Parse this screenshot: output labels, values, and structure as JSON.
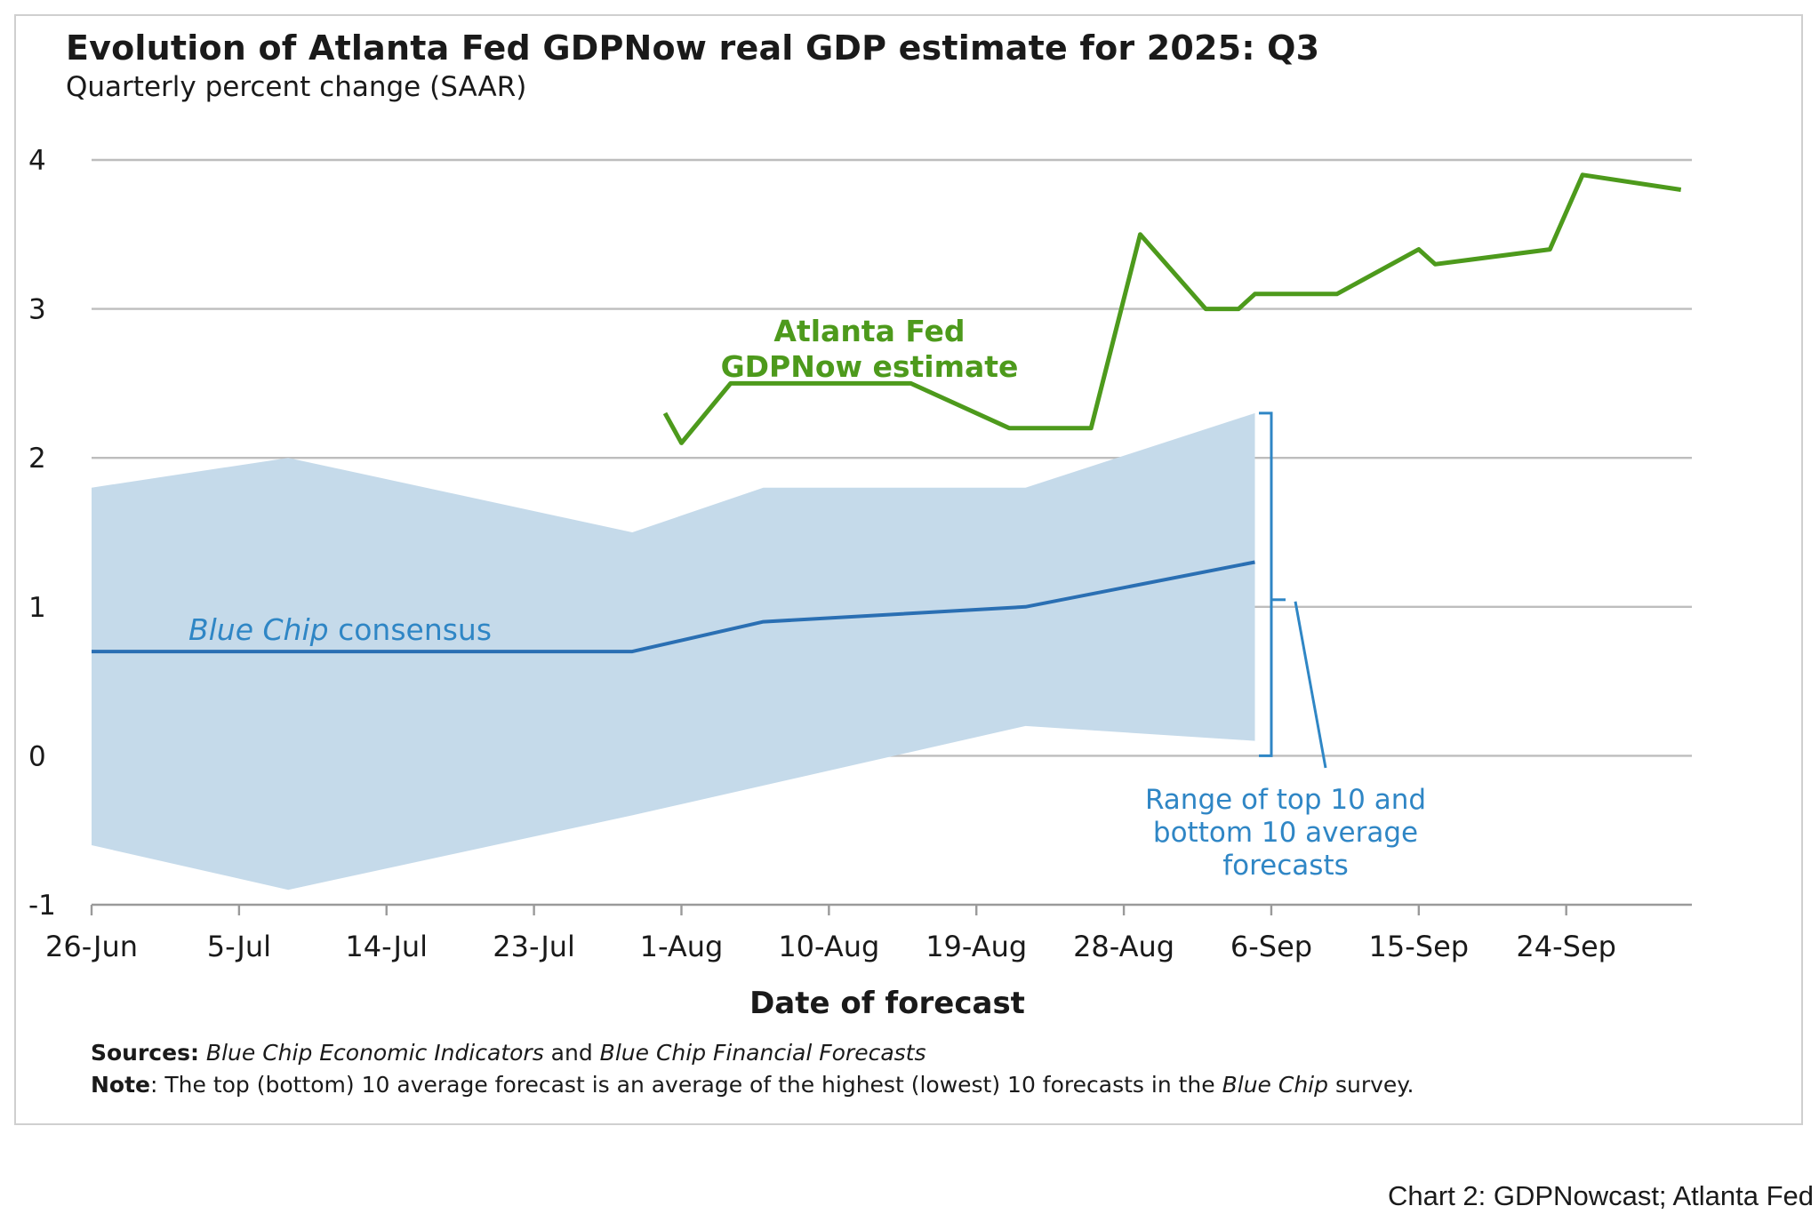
{
  "title": "Evolution of Atlanta Fed GDPNow real GDP estimate for 2025: Q3",
  "subtitle": "Quarterly percent change (SAAR)",
  "caption": "Chart 2: GDPNowcast; Atlanta Fed",
  "sources": {
    "label": "Sources:",
    "part1": "Blue Chip Economic Indicators",
    "and": " and ",
    "part2": "Blue Chip Financial Forecasts"
  },
  "note": {
    "label": "Note",
    "text_before": ": The top (bottom) 10 average forecast is an average of the highest (lowest) 10 forecasts in the ",
    "italic": "Blue Chip",
    "text_after": " survey."
  },
  "chart_data": {
    "type": "line",
    "xlabel": "Date of forecast",
    "ylabel": "",
    "ylim": [
      -1,
      4
    ],
    "yticks": [
      "-1",
      "0",
      "1",
      "2",
      "3",
      "4"
    ],
    "x_tick_labels": [
      "26-Jun",
      "5-Jul",
      "14-Jul",
      "23-Jul",
      "1-Aug",
      "10-Aug",
      "19-Aug",
      "28-Aug",
      "6-Sep",
      "15-Sep",
      "24-Sep"
    ],
    "grid": true,
    "colors": {
      "gdpnow": "#4d9a1c",
      "consensus": "#2a6fb3",
      "range": "#c5daea",
      "annotation": "#2f86c5",
      "grid": "#bdbdbd"
    },
    "series": [
      {
        "name": "Atlanta Fed GDPNow estimate",
        "points": [
          [
            "2025-07-31",
            2.3
          ],
          [
            "2025-08-01",
            2.1
          ],
          [
            "2025-08-04",
            2.5
          ],
          [
            "2025-08-15",
            2.5
          ],
          [
            "2025-08-21",
            2.2
          ],
          [
            "2025-08-26",
            2.2
          ],
          [
            "2025-08-29",
            3.5
          ],
          [
            "2025-09-02",
            3.0
          ],
          [
            "2025-09-04",
            3.0
          ],
          [
            "2025-09-05",
            3.1
          ],
          [
            "2025-09-10",
            3.1
          ],
          [
            "2025-09-15",
            3.4
          ],
          [
            "2025-09-16",
            3.3
          ],
          [
            "2025-09-23",
            3.4
          ],
          [
            "2025-09-25",
            3.9
          ],
          [
            "2025-10-01",
            3.8
          ]
        ]
      },
      {
        "name": "Blue Chip consensus",
        "points": [
          [
            "2025-06-26",
            0.7
          ],
          [
            "2025-07-29",
            0.7
          ],
          [
            "2025-08-06",
            0.9
          ],
          [
            "2025-08-22",
            1.0
          ],
          [
            "2025-09-05",
            1.3
          ]
        ]
      },
      {
        "name": "Range of top 10 and bottom 10 average forecasts",
        "upper": [
          [
            "2025-06-26",
            1.8
          ],
          [
            "2025-07-08",
            2.0
          ],
          [
            "2025-07-29",
            1.5
          ],
          [
            "2025-08-06",
            1.8
          ],
          [
            "2025-08-22",
            1.8
          ],
          [
            "2025-09-05",
            2.3
          ]
        ],
        "lower": [
          [
            "2025-06-26",
            -0.6
          ],
          [
            "2025-07-08",
            -0.9
          ],
          [
            "2025-07-29",
            -0.4
          ],
          [
            "2025-08-22",
            0.2
          ],
          [
            "2025-09-05",
            0.1
          ]
        ]
      }
    ],
    "annotations": {
      "gdpnow_label": [
        "Atlanta Fed",
        "GDPNow estimate"
      ],
      "consensus_label_italic": "Blue Chip",
      "consensus_label_rest": " consensus",
      "range_label": [
        "Range of top 10 and",
        "bottom 10 average",
        "forecasts"
      ]
    }
  }
}
